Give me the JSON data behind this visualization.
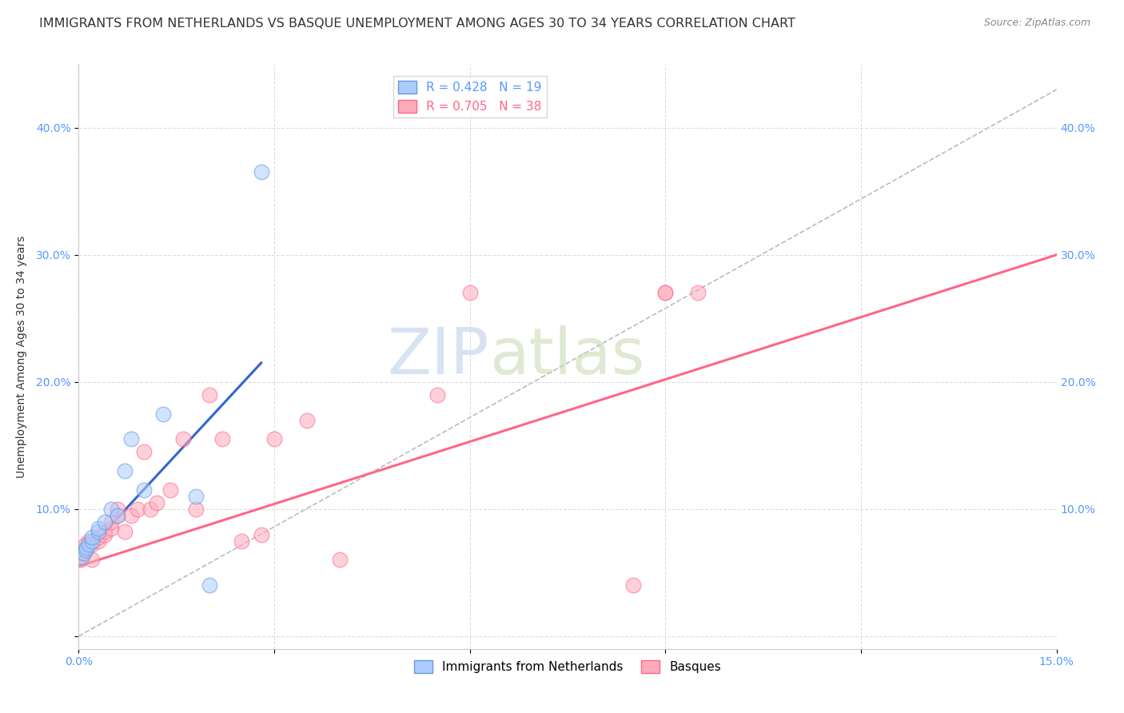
{
  "title": "IMMIGRANTS FROM NETHERLANDS VS BASQUE UNEMPLOYMENT AMONG AGES 30 TO 34 YEARS CORRELATION CHART",
  "source": "Source: ZipAtlas.com",
  "ylabel": "Unemployment Among Ages 30 to 34 years",
  "watermark_zip": "ZIP",
  "watermark_atlas": "atlas",
  "xlim": [
    0.0,
    0.15
  ],
  "ylim": [
    -0.01,
    0.45
  ],
  "xticks": [
    0.0,
    0.03,
    0.06,
    0.09,
    0.12,
    0.15
  ],
  "yticks": [
    0.0,
    0.1,
    0.2,
    0.3,
    0.4
  ],
  "xticklabels": [
    "0.0%",
    "",
    "",
    "",
    "",
    "15.0%"
  ],
  "yticklabels_left": [
    "",
    "10.0%",
    "20.0%",
    "30.0%",
    "40.0%"
  ],
  "yticklabels_right": [
    "",
    "10.0%",
    "20.0%",
    "30.0%",
    "40.0%"
  ],
  "legend1_label": "R = 0.428   N = 19",
  "legend2_label": "R = 0.705   N = 38",
  "blue_scatter_x": [
    0.0005,
    0.0008,
    0.001,
    0.0012,
    0.0015,
    0.002,
    0.002,
    0.003,
    0.003,
    0.004,
    0.005,
    0.006,
    0.007,
    0.008,
    0.01,
    0.013,
    0.018,
    0.02,
    0.028
  ],
  "blue_scatter_y": [
    0.062,
    0.065,
    0.068,
    0.07,
    0.072,
    0.075,
    0.078,
    0.082,
    0.085,
    0.09,
    0.1,
    0.095,
    0.13,
    0.155,
    0.115,
    0.175,
    0.11,
    0.04,
    0.365
  ],
  "pink_scatter_x": [
    0.0003,
    0.0005,
    0.0007,
    0.001,
    0.001,
    0.0015,
    0.002,
    0.002,
    0.003,
    0.003,
    0.004,
    0.004,
    0.005,
    0.005,
    0.006,
    0.006,
    0.007,
    0.008,
    0.009,
    0.01,
    0.011,
    0.012,
    0.014,
    0.016,
    0.018,
    0.02,
    0.022,
    0.025,
    0.028,
    0.03,
    0.035,
    0.04,
    0.055,
    0.06,
    0.085,
    0.09,
    0.09,
    0.095
  ],
  "pink_scatter_y": [
    0.06,
    0.063,
    0.065,
    0.068,
    0.072,
    0.075,
    0.06,
    0.072,
    0.075,
    0.078,
    0.08,
    0.082,
    0.085,
    0.09,
    0.095,
    0.1,
    0.082,
    0.095,
    0.1,
    0.145,
    0.1,
    0.105,
    0.115,
    0.155,
    0.1,
    0.19,
    0.155,
    0.075,
    0.08,
    0.155,
    0.17,
    0.06,
    0.19,
    0.27,
    0.04,
    0.27,
    0.27,
    0.27
  ],
  "blue_line_x": [
    0.0,
    0.028
  ],
  "blue_line_y": [
    0.06,
    0.215
  ],
  "pink_line_x": [
    0.0,
    0.15
  ],
  "pink_line_y": [
    0.055,
    0.3
  ],
  "diag_line_x": [
    0.0,
    0.15
  ],
  "diag_line_y": [
    0.0,
    0.43
  ],
  "background_color": "#ffffff",
  "grid_color": "#dddddd",
  "title_fontsize": 11.5,
  "label_fontsize": 10,
  "tick_fontsize": 10
}
